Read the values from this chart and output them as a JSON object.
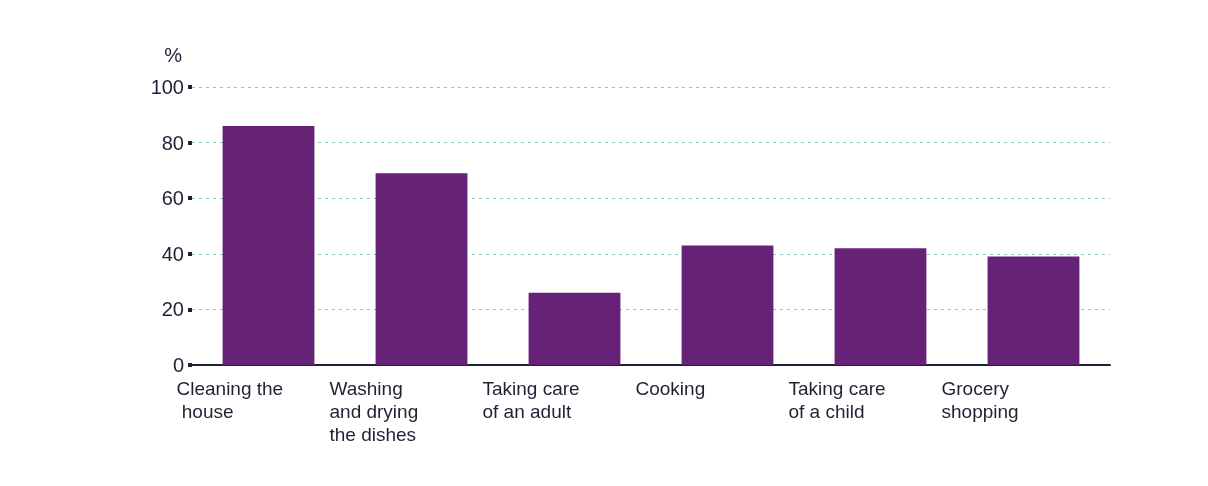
{
  "chart_data": {
    "type": "bar",
    "ylabel": "%",
    "categories": [
      "Cleaning the house",
      "Washing and drying the dishes",
      "Taking care of an adult",
      "Cooking",
      "Taking care of a child",
      "Grocery shopping"
    ],
    "values": [
      86,
      69,
      26,
      43,
      42,
      39
    ],
    "color": "#662277",
    "ylim": [
      0,
      100
    ],
    "yticks": [
      0,
      20,
      40,
      60,
      80,
      100
    ],
    "grid": "y"
  }
}
